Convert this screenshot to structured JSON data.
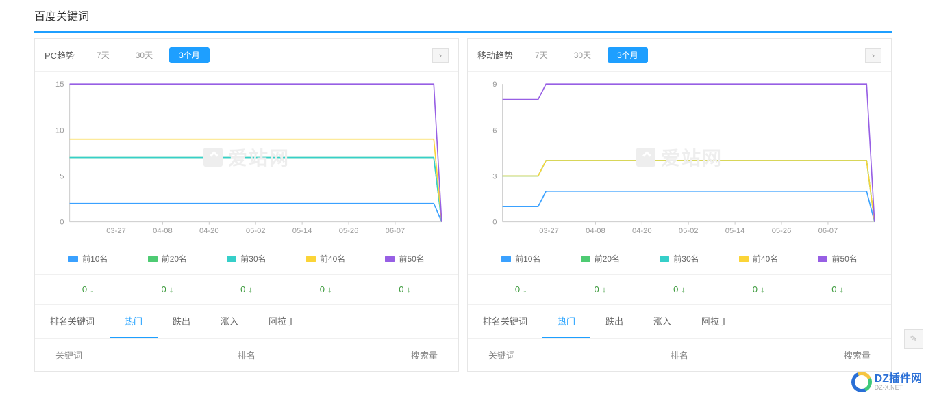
{
  "section_title": "百度关键词",
  "time_tabs": [
    "7天",
    "30天",
    "3个月"
  ],
  "active_time_tab": 2,
  "watermark_text": "爱站网",
  "legend": [
    {
      "label": "前10名",
      "color": "#3aa1ff"
    },
    {
      "label": "前20名",
      "color": "#4ecb73"
    },
    {
      "label": "前30名",
      "color": "#36cfc9"
    },
    {
      "label": "前40名",
      "color": "#fbd437"
    },
    {
      "label": "前50名",
      "color": "#975fe4"
    }
  ],
  "delta_value": "0",
  "delta_arrow": "↓",
  "delta_color": "#3c9a3c",
  "kw_tabs": [
    "排名关键词",
    "热门",
    "跌出",
    "涨入",
    "阿拉丁"
  ],
  "kw_active_tab": 1,
  "table_headers": {
    "c1": "关键词",
    "c2": "排名",
    "c3": "搜索量"
  },
  "corner_brand": {
    "title": "DZ插件网",
    "sub": "DZ-X.NET"
  },
  "pc_panel": {
    "title": "PC趋势",
    "chart": {
      "type": "line",
      "ylim": [
        0,
        15
      ],
      "ytick_step": 5,
      "x_labels": [
        "03-27",
        "04-08",
        "04-20",
        "05-02",
        "05-14",
        "05-26",
        "06-07"
      ],
      "background_color": "#ffffff",
      "axis_color": "#cccccc",
      "series": [
        {
          "color": "#3aa1ff",
          "points": [
            [
              0,
              2
            ],
            [
              92,
              2
            ],
            [
              94,
              0
            ]
          ]
        },
        {
          "color": "#4ecb73",
          "points": [
            [
              0,
              7
            ],
            [
              92,
              7
            ],
            [
              94,
              0
            ]
          ]
        },
        {
          "color": "#36cfc9",
          "points": [
            [
              0,
              7
            ],
            [
              92,
              7
            ],
            [
              94,
              0
            ]
          ]
        },
        {
          "color": "#fbd437",
          "points": [
            [
              0,
              9
            ],
            [
              92,
              9
            ],
            [
              94,
              0
            ]
          ]
        },
        {
          "color": "#975fe4",
          "points": [
            [
              0,
              15
            ],
            [
              92,
              15
            ],
            [
              94,
              0
            ]
          ]
        }
      ]
    }
  },
  "mobile_panel": {
    "title": "移动趋势",
    "chart": {
      "type": "line",
      "ylim": [
        0,
        9
      ],
      "ytick_step": 3,
      "x_labels": [
        "03-27",
        "04-08",
        "04-20",
        "05-02",
        "05-14",
        "05-26",
        "06-07"
      ],
      "background_color": "#ffffff",
      "axis_color": "#cccccc",
      "series": [
        {
          "color": "#3aa1ff",
          "points": [
            [
              0,
              1
            ],
            [
              9,
              1
            ],
            [
              11,
              2
            ],
            [
              92,
              2
            ],
            [
              94,
              0
            ]
          ]
        },
        {
          "color": "#4ecb73",
          "points": [
            [
              0,
              3
            ],
            [
              9,
              3
            ],
            [
              11,
              4
            ],
            [
              92,
              4
            ],
            [
              94,
              0
            ]
          ]
        },
        {
          "color": "#36cfc9",
          "points": [
            [
              0,
              3
            ],
            [
              9,
              3
            ],
            [
              11,
              4
            ],
            [
              92,
              4
            ],
            [
              94,
              0
            ]
          ]
        },
        {
          "color": "#fbd437",
          "points": [
            [
              0,
              3
            ],
            [
              9,
              3
            ],
            [
              11,
              4
            ],
            [
              92,
              4
            ],
            [
              94,
              0
            ]
          ]
        },
        {
          "color": "#975fe4",
          "points": [
            [
              0,
              8
            ],
            [
              9,
              8
            ],
            [
              11,
              9
            ],
            [
              92,
              9
            ],
            [
              94,
              0
            ]
          ]
        }
      ]
    }
  }
}
